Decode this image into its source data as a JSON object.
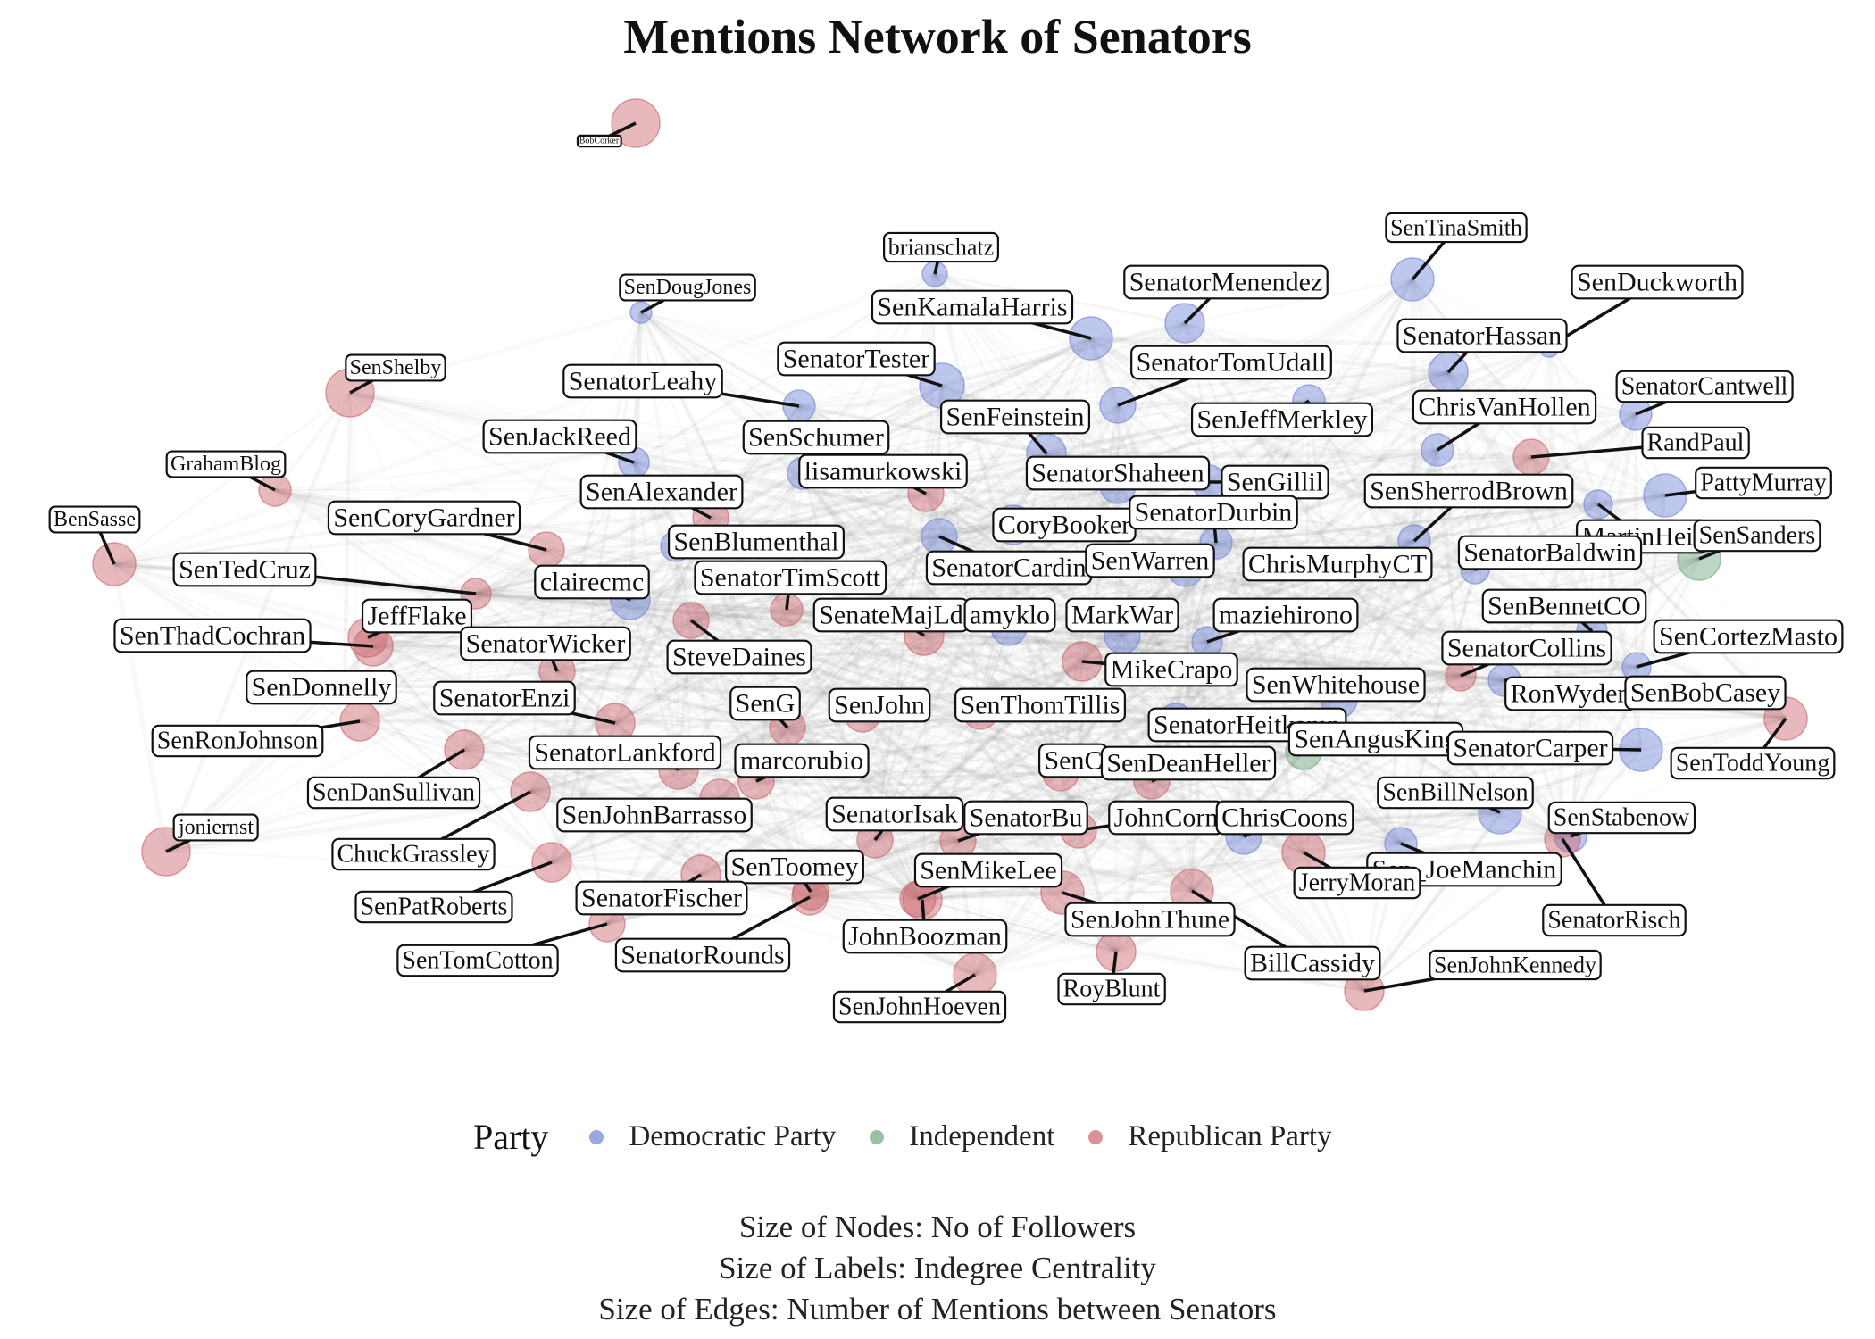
{
  "title": "Mentions Network of Senators",
  "legend": {
    "title": "Party",
    "items": [
      {
        "label": "Democratic Party",
        "color": "#6f82d6"
      },
      {
        "label": "Independent",
        "color": "#6ea57e"
      },
      {
        "label": "Republican Party",
        "color": "#c9646b"
      }
    ]
  },
  "notes": [
    "Size of Nodes: No of Followers",
    "Size of Labels: Indegree Centrality",
    "Size of Edges: Number of Mentions between Senators"
  ],
  "nodes": [
    {
      "id": "BobCorker",
      "party": "Republican Party"
    },
    {
      "id": "brianschatz",
      "party": "Democratic Party"
    },
    {
      "id": "SenTinaSmith",
      "party": "Democratic Party"
    },
    {
      "id": "SenDougJones",
      "party": "Democratic Party"
    },
    {
      "id": "SenatorMenendez",
      "party": "Democratic Party"
    },
    {
      "id": "SenDuckworth",
      "party": "Democratic Party"
    },
    {
      "id": "SenKamalaHarris",
      "party": "Democratic Party"
    },
    {
      "id": "SenatorHassan",
      "party": "Democratic Party"
    },
    {
      "id": "SenShelby",
      "party": "Republican Party"
    },
    {
      "id": "SenatorTester",
      "party": "Democratic Party"
    },
    {
      "id": "SenatorTomUdall",
      "party": "Democratic Party"
    },
    {
      "id": "SenatorCantwell",
      "party": "Democratic Party"
    },
    {
      "id": "SenatorLeahy",
      "party": "Democratic Party"
    },
    {
      "id": "ChrisVanHollen",
      "party": "Democratic Party"
    },
    {
      "id": "SenFeinstein",
      "party": "Democratic Party"
    },
    {
      "id": "SenJeffMerkley",
      "party": "Democratic Party"
    },
    {
      "id": "SenJackReed",
      "party": "Democratic Party"
    },
    {
      "id": "SenSchumer",
      "party": "Democratic Party"
    },
    {
      "id": "RandPaul",
      "party": "Republican Party"
    },
    {
      "id": "GrahamBlog",
      "party": "Republican Party"
    },
    {
      "id": "lisamurkowski",
      "party": "Republican Party"
    },
    {
      "id": "SenatorShaheen",
      "party": "Democratic Party"
    },
    {
      "id": "PattyMurray",
      "party": "Democratic Party"
    },
    {
      "id": "SenAlexander",
      "party": "Republican Party"
    },
    {
      "id": "SenGillibrand",
      "party": "Democratic Party"
    },
    {
      "id": "SenSherrodBrown",
      "party": "Democratic Party"
    },
    {
      "id": "BenSasse",
      "party": "Republican Party"
    },
    {
      "id": "SenCoryGardner",
      "party": "Republican Party"
    },
    {
      "id": "CoryBooker",
      "party": "Democratic Party"
    },
    {
      "id": "SenatorDurbin",
      "party": "Democratic Party"
    },
    {
      "id": "MartinHeinrich",
      "party": "Democratic Party"
    },
    {
      "id": "SenSanders",
      "party": "Independent"
    },
    {
      "id": "SenBlumenthal",
      "party": "Democratic Party"
    },
    {
      "id": "SenTedCruz",
      "party": "Republican Party"
    },
    {
      "id": "SenatorCardin",
      "party": "Democratic Party"
    },
    {
      "id": "SenWarren",
      "party": "Democratic Party"
    },
    {
      "id": "ChrisMurphyCT",
      "party": "Democratic Party"
    },
    {
      "id": "SenatorBaldwin",
      "party": "Democratic Party"
    },
    {
      "id": "clairecmc",
      "party": "Democratic Party"
    },
    {
      "id": "SenatorTimScott",
      "party": "Republican Party"
    },
    {
      "id": "JeffFlake",
      "party": "Republican Party"
    },
    {
      "id": "SenBennetCO",
      "party": "Democratic Party"
    },
    {
      "id": "SenateMajLdr",
      "party": "Republican Party"
    },
    {
      "id": "amyklobuchar",
      "party": "Democratic Party"
    },
    {
      "id": "MarkWarner",
      "party": "Democratic Party"
    },
    {
      "id": "maziehirono",
      "party": "Democratic Party"
    },
    {
      "id": "SenThadCochran",
      "party": "Republican Party"
    },
    {
      "id": "SenCortezMasto",
      "party": "Democratic Party"
    },
    {
      "id": "SenatorWicker",
      "party": "Republican Party"
    },
    {
      "id": "SteveDaines",
      "party": "Republican Party"
    },
    {
      "id": "SenatorCollins",
      "party": "Republican Party"
    },
    {
      "id": "MikeCrapo",
      "party": "Republican Party"
    },
    {
      "id": "SenDonnelly",
      "party": "Democratic Party"
    },
    {
      "id": "SenWhitehouse",
      "party": "Democratic Party"
    },
    {
      "id": "RonWyden",
      "party": "Democratic Party"
    },
    {
      "id": "SenBobCasey",
      "party": "Democratic Party"
    },
    {
      "id": "SenatorEnzi",
      "party": "Republican Party"
    },
    {
      "id": "SenGrassley",
      "party": "Republican Party"
    },
    {
      "id": "SenJohnHoeven2",
      "party": "Republican Party"
    },
    {
      "id": "SenThomTillis",
      "party": "Republican Party"
    },
    {
      "id": "SenatorHeitkamp",
      "party": "Democratic Party"
    },
    {
      "id": "SenRonJohnson",
      "party": "Republican Party"
    },
    {
      "id": "SenToddYoung",
      "party": "Republican Party"
    },
    {
      "id": "SenAngusKing",
      "party": "Independent"
    },
    {
      "id": "SenatorLankford",
      "party": "Republican Party"
    },
    {
      "id": "marcorubio",
      "party": "Republican Party"
    },
    {
      "id": "SenCapito",
      "party": "Republican Party"
    },
    {
      "id": "SenDeanHeller",
      "party": "Republican Party"
    },
    {
      "id": "SenatorCarper",
      "party": "Democratic Party"
    },
    {
      "id": "SenDanSullivan",
      "party": "Republican Party"
    },
    {
      "id": "SenBillNelson",
      "party": "Democratic Party"
    },
    {
      "id": "SenJohnBarrasso",
      "party": "Republican Party"
    },
    {
      "id": "SenatorIsakson",
      "party": "Republican Party"
    },
    {
      "id": "SenatorBurr",
      "party": "Republican Party"
    },
    {
      "id": "JohnCornyn",
      "party": "Republican Party"
    },
    {
      "id": "ChrisCoons",
      "party": "Democratic Party"
    },
    {
      "id": "SenStabenow",
      "party": "Democratic Party"
    },
    {
      "id": "joniernst",
      "party": "Republican Party"
    },
    {
      "id": "ChuckGrassley",
      "party": "Republican Party"
    },
    {
      "id": "Sen_JoeManchin",
      "party": "Democratic Party"
    },
    {
      "id": "SenToomey",
      "party": "Republican Party"
    },
    {
      "id": "SenMikeLee",
      "party": "Republican Party"
    },
    {
      "id": "JerryMoran",
      "party": "Republican Party"
    },
    {
      "id": "SenPatRoberts",
      "party": "Republican Party"
    },
    {
      "id": "SenatorFischer",
      "party": "Republican Party"
    },
    {
      "id": "SenatorRisch",
      "party": "Republican Party"
    },
    {
      "id": "SenJohnThune",
      "party": "Republican Party"
    },
    {
      "id": "JohnBoozman",
      "party": "Republican Party"
    },
    {
      "id": "SenTomCotton",
      "party": "Republican Party"
    },
    {
      "id": "SenatorRounds",
      "party": "Republican Party"
    },
    {
      "id": "BillCassidy",
      "party": "Republican Party"
    },
    {
      "id": "SenJohnKennedy",
      "party": "Republican Party"
    },
    {
      "id": "RoyBlunt",
      "party": "Republican Party"
    },
    {
      "id": "SenJohnHoeven",
      "party": "Republican Party"
    }
  ],
  "labels": [
    {
      "node": "BobCorker",
      "text": "BobCorker"
    },
    {
      "node": "brianschatz",
      "text": "brianschatz"
    },
    {
      "node": "SenTinaSmith",
      "text": "SenTinaSmith"
    },
    {
      "node": "SenDougJones",
      "text": "SenDougJones"
    },
    {
      "node": "SenatorMenendez",
      "text": "SenatorMenendez"
    },
    {
      "node": "SenDuckworth",
      "text": "SenDuckworth"
    },
    {
      "node": "SenKamalaHarris",
      "text": "SenKamalaHarris"
    },
    {
      "node": "SenatorHassan",
      "text": "SenatorHassan"
    },
    {
      "node": "SenShelby",
      "text": "SenShelby"
    },
    {
      "node": "SenatorTester",
      "text": "SenatorTester"
    },
    {
      "node": "SenatorTomUdall",
      "text": "SenatorTomUdall"
    },
    {
      "node": "SenatorCantwell",
      "text": "SenatorCantwell"
    },
    {
      "node": "SenatorLeahy",
      "text": "SenatorLeahy"
    },
    {
      "node": "ChrisVanHollen",
      "text": "ChrisVanHollen"
    },
    {
      "node": "SenFeinstein",
      "text": "SenFeinstein"
    },
    {
      "node": "SenJeffMerkley",
      "text": "SenJeffMerkley"
    },
    {
      "node": "SenJackReed",
      "text": "SenJackReed"
    },
    {
      "node": "SenSchumer",
      "text": "SenSchumer"
    },
    {
      "node": "RandPaul",
      "text": "RandPaul"
    },
    {
      "node": "GrahamBlog",
      "text": "GrahamBlog"
    },
    {
      "node": "lisamurkowski",
      "text": "lisamurkowski"
    },
    {
      "node": "SenatorShaheen",
      "text": "SenatorShaheen"
    },
    {
      "node": "PattyMurray",
      "text": "PattyMurray"
    },
    {
      "node": "SenAlexander",
      "text": "SenAlexander"
    },
    {
      "node": "SenGillibrand",
      "text": "SenGillil"
    },
    {
      "node": "SenSherrodBrown",
      "text": "SenSherrodBrown"
    },
    {
      "node": "BenSasse",
      "text": "BenSasse"
    },
    {
      "node": "SenCoryGardner",
      "text": "SenCoryGardner"
    },
    {
      "node": "CoryBooker",
      "text": "CoryBooker"
    },
    {
      "node": "SenatorDurbin",
      "text": "SenatorDurbin"
    },
    {
      "node": "MartinHeinrich",
      "text": "MartinHeir"
    },
    {
      "node": "SenSanders",
      "text": "SenSanders"
    },
    {
      "node": "SenBlumenthal",
      "text": "SenBlumenthal"
    },
    {
      "node": "SenTedCruz",
      "text": "SenTedCruz"
    },
    {
      "node": "SenatorCardin",
      "text": "SenatorCardin"
    },
    {
      "node": "SenWarren",
      "text": "SenWarren"
    },
    {
      "node": "ChrisMurphyCT",
      "text": "ChrisMurphyCT"
    },
    {
      "node": "SenatorBaldwin",
      "text": "SenatorBaldwin"
    },
    {
      "node": "clairecmc",
      "text": "clairecmc"
    },
    {
      "node": "SenatorTimScott",
      "text": "SenatorTimScott"
    },
    {
      "node": "JeffFlake",
      "text": "JeffFlake"
    },
    {
      "node": "SenBennetCO",
      "text": "SenBennetCO"
    },
    {
      "node": "SenateMajLdr",
      "text": "SenateMajLd"
    },
    {
      "node": "amyklobuchar",
      "text": "amyklo"
    },
    {
      "node": "MarkWarner",
      "text": "MarkWar"
    },
    {
      "node": "maziehirono",
      "text": "maziehirono"
    },
    {
      "node": "SenThadCochran",
      "text": "SenThadCochran"
    },
    {
      "node": "SenCortezMasto",
      "text": "SenCortezMasto"
    },
    {
      "node": "SenatorWicker",
      "text": "SenatorWicker"
    },
    {
      "node": "SteveDaines",
      "text": "SteveDaines"
    },
    {
      "node": "SenatorCollins",
      "text": "SenatorCollins"
    },
    {
      "node": "MikeCrapo",
      "text": "MikeCrapo"
    },
    {
      "node": "SenDonnelly",
      "text": "SenDonnelly"
    },
    {
      "node": "SenWhitehouse",
      "text": "SenWhitehouse"
    },
    {
      "node": "RonWyden",
      "text": "RonWyden"
    },
    {
      "node": "SenBobCasey",
      "text": "SenBobCasey"
    },
    {
      "node": "SenatorEnzi",
      "text": "SenatorEnzi"
    },
    {
      "node": "SenGrassley",
      "text": "SenG"
    },
    {
      "node": "SenJohnHoeven2",
      "text": "SenJohn"
    },
    {
      "node": "SenThomTillis",
      "text": "SenThomTillis"
    },
    {
      "node": "SenatorHeitkamp",
      "text": "SenatorHeitkamp"
    },
    {
      "node": "SenRonJohnson",
      "text": "SenRonJohnson"
    },
    {
      "node": "SenToddYoung",
      "text": "SenToddYoung"
    },
    {
      "node": "SenAngusKing",
      "text": "SenAngusKing"
    },
    {
      "node": "SenatorLankford",
      "text": "SenatorLankford"
    },
    {
      "node": "marcorubio",
      "text": "marcorubio"
    },
    {
      "node": "SenCapito",
      "text": "SenC"
    },
    {
      "node": "SenDeanHeller",
      "text": "SenDeanHeller"
    },
    {
      "node": "SenatorCarper",
      "text": "SenatorCarper"
    },
    {
      "node": "SenDanSullivan",
      "text": "SenDanSullivan"
    },
    {
      "node": "SenBillNelson",
      "text": "SenBillNelson"
    },
    {
      "node": "SenJohnBarrasso",
      "text": "SenJohnBarrasso"
    },
    {
      "node": "SenatorIsakson",
      "text": "SenatorIsak"
    },
    {
      "node": "SenatorBurr",
      "text": "SenatorBu"
    },
    {
      "node": "JohnCornyn",
      "text": "JohnCorn"
    },
    {
      "node": "ChrisCoons",
      "text": "ChrisCoons"
    },
    {
      "node": "SenStabenow",
      "text": "SenStabenow"
    },
    {
      "node": "joniernst",
      "text": "joniernst"
    },
    {
      "node": "ChuckGrassley",
      "text": "ChuckGrassley"
    },
    {
      "node": "Sen_JoeManchin",
      "text": "Sen_JoeManchin"
    },
    {
      "node": "SenToomey",
      "text": "SenToomey"
    },
    {
      "node": "SenMikeLee",
      "text": "SenMikeLee"
    },
    {
      "node": "JerryMoran",
      "text": "JerryMoran"
    },
    {
      "node": "SenPatRoberts",
      "text": "SenPatRoberts"
    },
    {
      "node": "SenatorFischer",
      "text": "SenatorFischer"
    },
    {
      "node": "SenatorRisch",
      "text": "SenatorRisch"
    },
    {
      "node": "SenJohnThune",
      "text": "SenJohnThune"
    },
    {
      "node": "JohnBoozman",
      "text": "JohnBoozman"
    },
    {
      "node": "SenTomCotton",
      "text": "SenTomCotton"
    },
    {
      "node": "SenatorRounds",
      "text": "SenatorRounds"
    },
    {
      "node": "BillCassidy",
      "text": "BillCassidy"
    },
    {
      "node": "SenJohnKennedy",
      "text": "SenJohnKennedy"
    },
    {
      "node": "RoyBlunt",
      "text": "RoyBlunt"
    },
    {
      "node": "SenJohnHoeven",
      "text": "SenJohnHoeven"
    }
  ]
}
